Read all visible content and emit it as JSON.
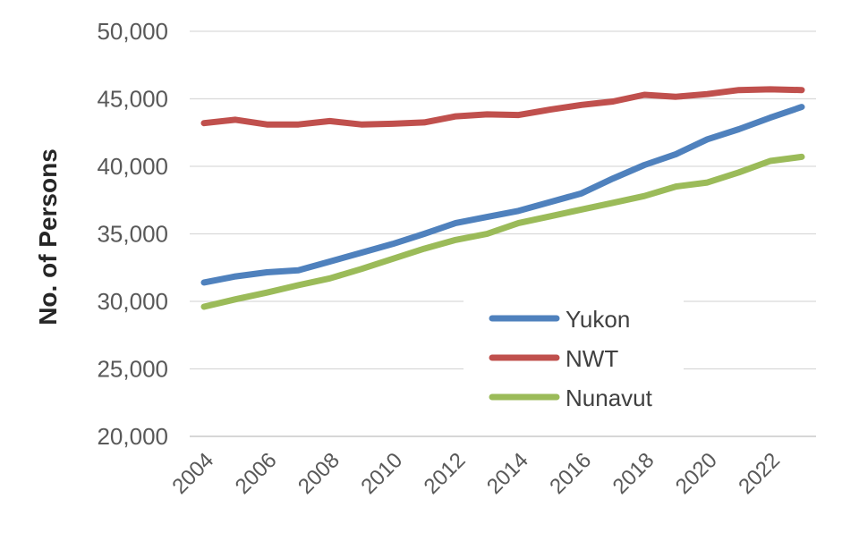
{
  "chart_data": {
    "type": "line",
    "ylabel": "No. of Persons",
    "ylim": [
      20000,
      50000
    ],
    "yticks": [
      20000,
      25000,
      30000,
      35000,
      40000,
      45000,
      50000
    ],
    "ytick_labels": [
      "20,000",
      "25,000",
      "30,000",
      "35,000",
      "40,000",
      "45,000",
      "50,000"
    ],
    "xlim": [
      2004,
      2023
    ],
    "xticks": [
      2004,
      2006,
      2008,
      2010,
      2012,
      2014,
      2016,
      2018,
      2020,
      2022
    ],
    "xtick_labels": [
      "2004",
      "2006",
      "2008",
      "2010",
      "2012",
      "2014",
      "2016",
      "2018",
      "2020",
      "2022"
    ],
    "grid": "horizontal",
    "legend_position": "bottom-right",
    "x": [
      2004,
      2005,
      2006,
      2007,
      2008,
      2009,
      2010,
      2011,
      2012,
      2013,
      2014,
      2015,
      2016,
      2017,
      2018,
      2019,
      2020,
      2021,
      2022,
      2023
    ],
    "series": [
      {
        "name": "Yukon",
        "color": "#4f81bd",
        "values": [
          31400,
          31850,
          32150,
          32300,
          32950,
          33600,
          34250,
          35000,
          35800,
          36250,
          36700,
          37350,
          38000,
          39100,
          40100,
          40900,
          42000,
          42750,
          43600,
          44400
        ]
      },
      {
        "name": "NWT",
        "color": "#c0504d",
        "values": [
          43200,
          43450,
          43100,
          43100,
          43350,
          43100,
          43150,
          43250,
          43700,
          43850,
          43800,
          44200,
          44550,
          44800,
          45300,
          45150,
          45350,
          45650,
          45700,
          45650
        ]
      },
      {
        "name": "Nunavut",
        "color": "#9bbb59",
        "values": [
          29600,
          30150,
          30650,
          31200,
          31700,
          32400,
          33150,
          33900,
          34550,
          35000,
          35800,
          36300,
          36800,
          37300,
          37800,
          38500,
          38800,
          39550,
          40400,
          40700
        ]
      }
    ]
  }
}
